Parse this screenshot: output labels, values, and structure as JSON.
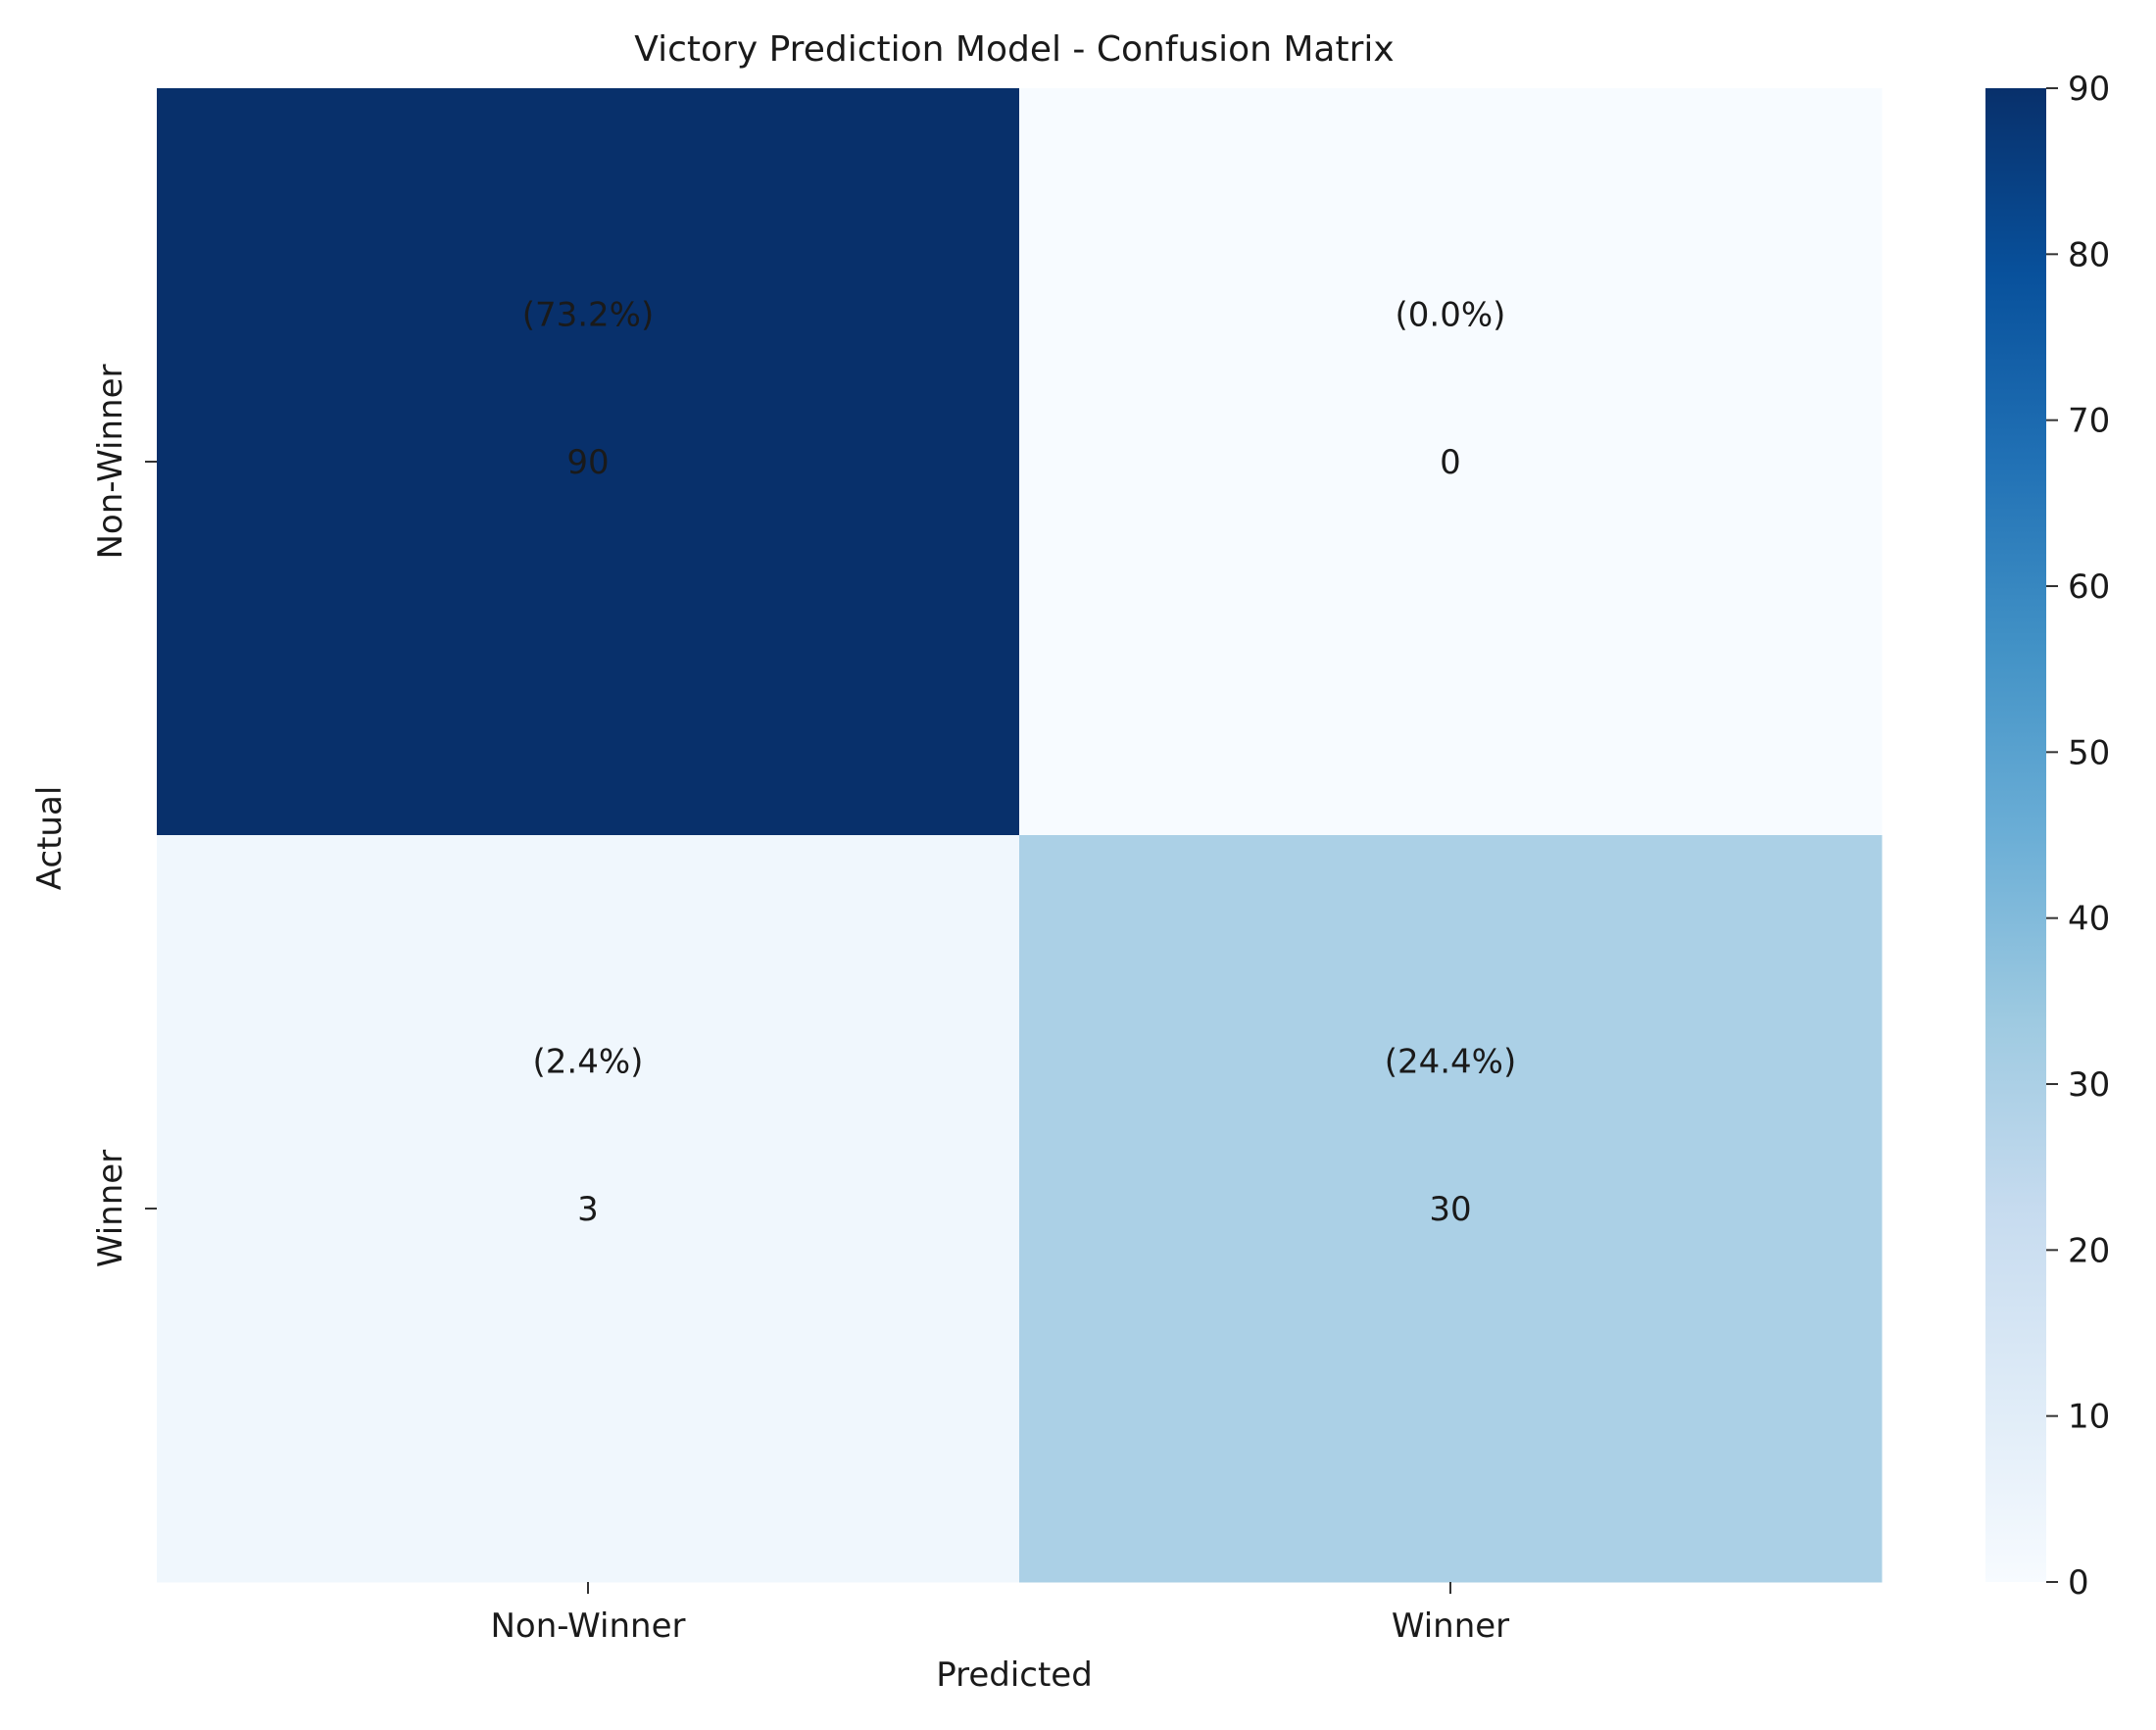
{
  "chart_data": {
    "type": "heatmap",
    "title": "Victory Prediction Model - Confusion Matrix",
    "xlabel": "Predicted",
    "ylabel": "Actual",
    "x_categories": [
      "Non-Winner",
      "Winner"
    ],
    "y_categories": [
      "Non-Winner",
      "Winner"
    ],
    "values": [
      [
        90,
        0
      ],
      [
        3,
        30
      ]
    ],
    "percent_labels": [
      [
        "(73.2%)",
        "(0.0%)"
      ],
      [
        "(2.4%)",
        "(24.4%)"
      ]
    ],
    "colormap": "Blues",
    "colorbar": {
      "range": [
        0,
        90
      ],
      "ticks": [
        "0",
        "10",
        "20",
        "30",
        "40",
        "50",
        "60",
        "70",
        "80",
        "90"
      ],
      "stops": [
        "#f7fbff",
        "#deebf7",
        "#c6dbef",
        "#9ecae1",
        "#6baed6",
        "#4292c6",
        "#2171b5",
        "#08519c",
        "#08306b"
      ]
    },
    "legend": "colorbar right",
    "grid": false
  }
}
